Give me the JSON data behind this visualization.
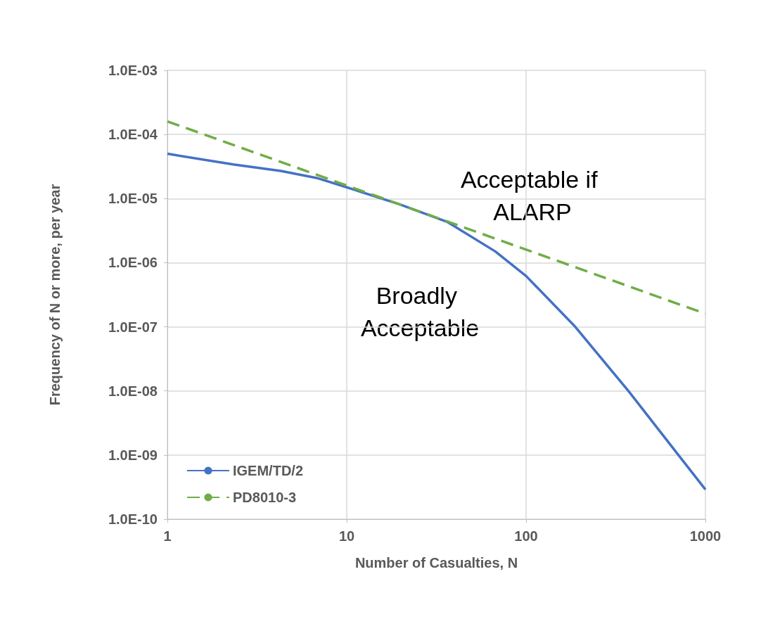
{
  "chart_data": {
    "type": "line",
    "xlabel": "Number of Casualties, N",
    "ylabel": "Frequency of N or more, per year",
    "log": "xy",
    "grid": true,
    "legend": "bottom left",
    "marker": "none",
    "xlim": [
      1,
      1000
    ],
    "xticks": [
      1,
      10,
      100,
      1000
    ],
    "ylim": [
      1e-10,
      0.001
    ],
    "yticks": [
      {
        "value": 1e-10,
        "label": "1.0E-10"
      },
      {
        "value": 1e-09,
        "label": "1.0E-09"
      },
      {
        "value": 1e-08,
        "label": "1.0E-08"
      },
      {
        "value": 1e-07,
        "label": "1.0E-07"
      },
      {
        "value": 1e-06,
        "label": "1.0E-06"
      },
      {
        "value": 1e-05,
        "label": "1.0E-05"
      },
      {
        "value": 0.0001,
        "label": "1.0E-04"
      },
      {
        "value": 0.001,
        "label": "1.0E-03"
      }
    ],
    "annotations": [
      "Acceptable if ALARP",
      "Broadly Acceptable"
    ],
    "series": [
      {
        "name": "IGEM/TD/2",
        "color": "#4472c4",
        "line_style": "solid",
        "x": [
          1,
          2.33,
          4.29,
          6.79,
          10,
          19.8,
          36.5,
          67.3,
          100,
          188,
          375,
          707,
          1000
        ],
        "values": [
          5e-05,
          3.4e-05,
          2.7e-05,
          2.1e-05,
          1.5e-05,
          8.1e-06,
          4.3e-06,
          1.5e-06,
          6.2e-07,
          1e-07,
          9.7e-09,
          1e-09,
          2.9e-10
        ]
      },
      {
        "name": "PD8010-3",
        "color": "#70ad47",
        "line_style": "dashed",
        "x": [
          1,
          1000
        ],
        "values": [
          0.00016,
          1.6e-07
        ]
      }
    ]
  }
}
